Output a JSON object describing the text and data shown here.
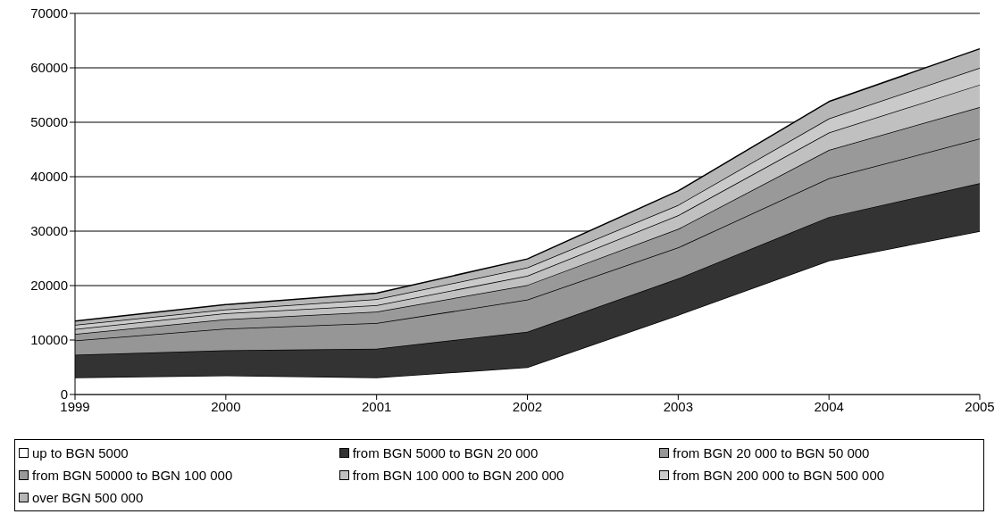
{
  "chart_data": {
    "type": "area",
    "stacked": true,
    "categories": [
      "1999",
      "2000",
      "2001",
      "2002",
      "2003",
      "2004",
      "2005"
    ],
    "series": [
      {
        "name": "up to BGN 5000",
        "color": "#ffffff",
        "values": [
          3100,
          3500,
          3100,
          5000,
          14600,
          24600,
          30000
        ]
      },
      {
        "name": "from BGN 5000 to BGN 20 000",
        "color": "#333333",
        "values": [
          4200,
          4600,
          5300,
          6500,
          6700,
          8000,
          8800
        ]
      },
      {
        "name": "from BGN 20 000 to BGN 50 000",
        "color": "#969696",
        "values": [
          2600,
          4000,
          4700,
          5900,
          5700,
          7100,
          8200
        ]
      },
      {
        "name": "from BGN 50000 to BGN 100 000",
        "color": "#999999",
        "values": [
          1200,
          1700,
          2100,
          2700,
          3400,
          5200,
          5800
        ]
      },
      {
        "name": "from BGN 100 000 to BGN 200 000",
        "color": "#c0c0c0",
        "values": [
          900,
          1100,
          1200,
          1700,
          2500,
          3200,
          4100
        ]
      },
      {
        "name": "from BGN 200 000 to BGN 500 000",
        "color": "#cacaca",
        "values": [
          800,
          700,
          1100,
          1500,
          1900,
          2600,
          3100
        ]
      },
      {
        "name": "over BGN 500 000",
        "color": "#b6b6b6",
        "values": [
          700,
          900,
          1100,
          1600,
          2600,
          3100,
          3500
        ]
      }
    ],
    "ylim": [
      0,
      70000
    ],
    "yticks": [
      0,
      10000,
      20000,
      30000,
      40000,
      50000,
      60000,
      70000
    ],
    "grid": "y",
    "legend": "bottom"
  }
}
